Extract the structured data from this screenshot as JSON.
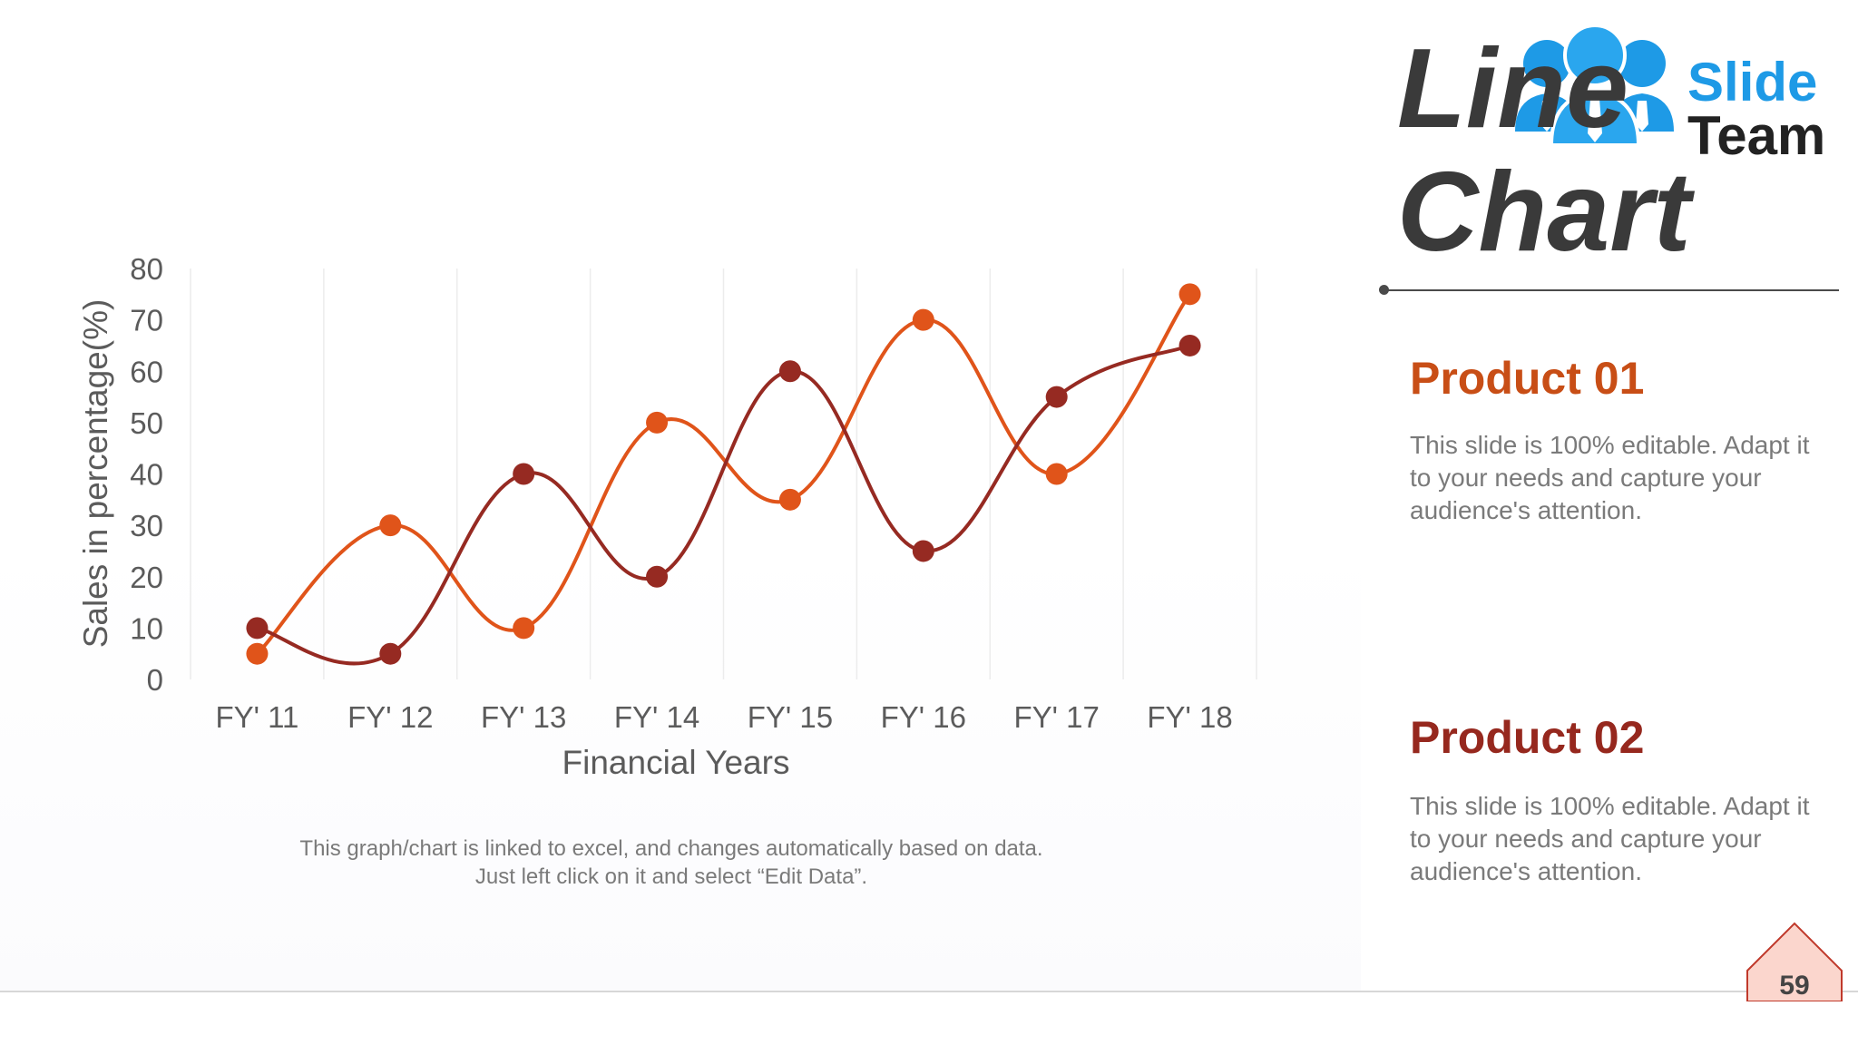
{
  "slide": {
    "title_line1": "Line",
    "title_line2": "Chart",
    "caption": "This graph/chart is linked to excel, and changes automatically based on data. Just left click on it and select “Edit Data”.",
    "page_number": "59"
  },
  "logo": {
    "word1": "Slide",
    "word2": "Team"
  },
  "products": [
    {
      "heading": "Product 01",
      "description": "This slide is 100% editable. Adapt it to your needs and capture your audience's attention.",
      "color": "#C84E16"
    },
    {
      "heading": "Product 02",
      "description": "This slide is 100% editable. Adapt it to your needs and capture your audience's attention.",
      "color": "#96281E"
    }
  ],
  "colors": {
    "series_a": "#E0541A",
    "series_b": "#962A22",
    "axis_text": "#5b5b5b",
    "grid": "#ececec",
    "badge_fill": "#FBD6CD",
    "badge_stroke": "#C0392B"
  },
  "chart_data": {
    "type": "line",
    "categories": [
      "FY' 11",
      "FY' 12",
      "FY' 13",
      "FY' 14",
      "FY' 15",
      "FY' 16",
      "FY' 17",
      "FY' 18"
    ],
    "series": [
      {
        "values": [
          5,
          30,
          10,
          50,
          35,
          70,
          40,
          75
        ],
        "color": "#E0541A"
      },
      {
        "values": [
          10,
          5,
          40,
          20,
          60,
          25,
          55,
          65
        ],
        "color": "#962A22"
      }
    ],
    "xlabel": "Financial Years",
    "ylabel": "Sales in percentage(%)",
    "ylim": [
      0,
      80
    ],
    "yticks": [
      0,
      10,
      20,
      30,
      40,
      50,
      60,
      70,
      80
    ],
    "grid": "vertical",
    "smooth": true
  }
}
